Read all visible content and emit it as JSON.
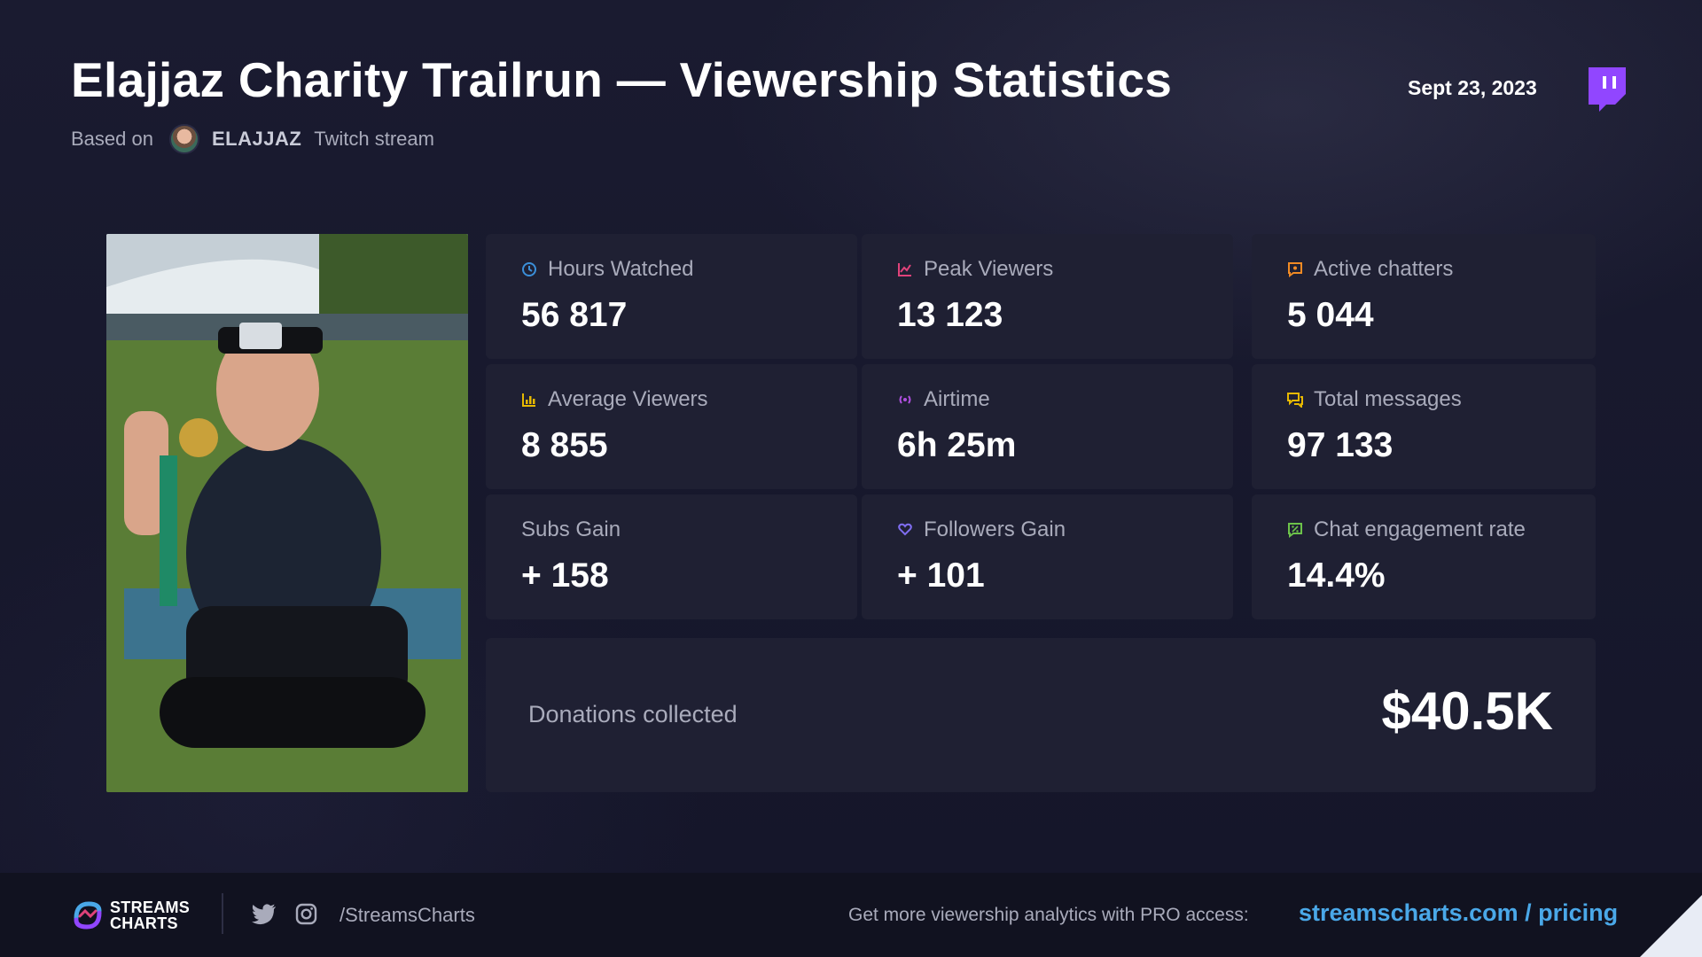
{
  "header": {
    "title": "Elajjaz Charity Trailrun — Viewership Statistics",
    "based_on": "Based on",
    "channel": "ELAJJAZ",
    "stream_type": "Twitch stream",
    "date": "Sept 23, 2023",
    "platform_icon": "twitch-icon"
  },
  "stats": [
    {
      "label": "Hours Watched",
      "value": "56 817",
      "icon": "clock-icon",
      "icon_color": "#3b8fd9"
    },
    {
      "label": "Peak Viewers",
      "value": "13 123",
      "icon": "chart-icon",
      "icon_color": "#e0427a"
    },
    {
      "label": "Active chatters",
      "value": "5 044",
      "icon": "chat-star-icon",
      "icon_color": "#f08a24"
    },
    {
      "label": "Average Viewers",
      "value": "8 855",
      "icon": "bar-chart-icon",
      "icon_color": "#e6b800"
    },
    {
      "label": "Airtime",
      "value": "6h 25m",
      "icon": "broadcast-icon",
      "icon_color": "#b04fe0"
    },
    {
      "label": "Total messages",
      "value": "97 133",
      "icon": "messages-icon",
      "icon_color": "#e6b800"
    },
    {
      "label": "Subs Gain",
      "value": "+ 158",
      "icon": "",
      "icon_color": ""
    },
    {
      "label": "Followers Gain",
      "value": "+ 101",
      "icon": "heart-chat-icon",
      "icon_color": "#7f6df0"
    },
    {
      "label": "Chat engagement rate",
      "value": "14.4%",
      "icon": "percent-chat-icon",
      "icon_color": "#6cc24a"
    }
  ],
  "donations": {
    "label": "Donations collected",
    "value": "$40.5K"
  },
  "footer": {
    "brand_line1": "STREAMS",
    "brand_line2": "CHARTS",
    "handle": "/StreamsCharts",
    "promo": "Get more viewership analytics with PRO access:",
    "promo_link": "streamscharts.com / pricing",
    "accent_color": "#4aa8e8"
  }
}
